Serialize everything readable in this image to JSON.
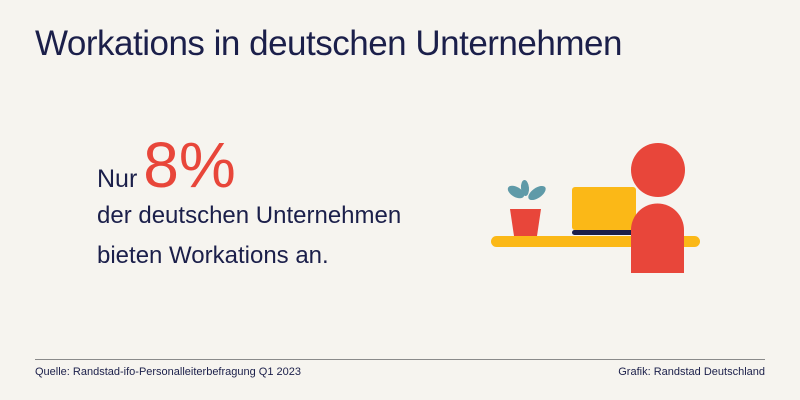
{
  "title": "Workations in deutschen Unternehmen",
  "statement": {
    "prefix": "Nur",
    "value": "8%",
    "line1": "der deutschen Unternehmen",
    "line2": "bieten Workations an."
  },
  "footer": {
    "source": "Quelle: Randstad-ifo-Personalleiterbefragung Q1 2023",
    "credit": "Grafik: Randstad Deutschland"
  },
  "colors": {
    "accent": "#e8463a",
    "text": "#1b1f4a",
    "yellow": "#fbb817",
    "leaf": "#5f9aa8"
  }
}
